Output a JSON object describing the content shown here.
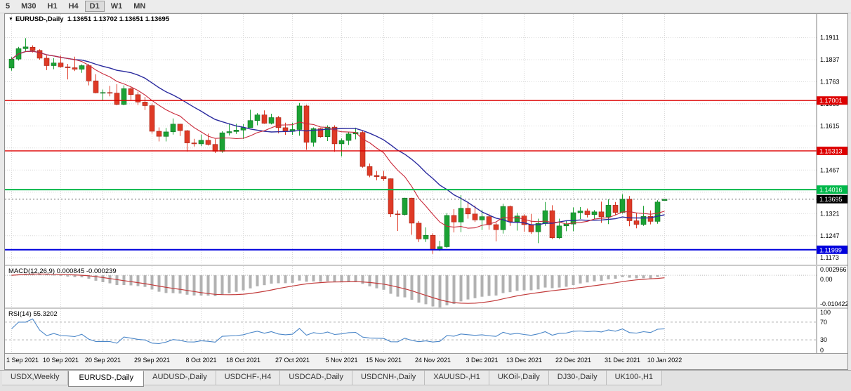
{
  "toolbar": {
    "timeframes": [
      {
        "label": "5",
        "active": false
      },
      {
        "label": "M30",
        "active": false
      },
      {
        "label": "H1",
        "active": false
      },
      {
        "label": "H4",
        "active": false
      },
      {
        "label": "D1",
        "active": true
      },
      {
        "label": "W1",
        "active": false
      },
      {
        "label": "MN",
        "active": false
      }
    ]
  },
  "main_chart": {
    "symbol": "EURUSD-,Daily",
    "ohlc_text": "1.13651 1.13702 1.13651 1.13695"
  },
  "chart_data": {
    "type": "candlestick",
    "title": "EURUSD-,Daily",
    "current": {
      "open": 1.13651,
      "high": 1.13702,
      "low": 1.13651,
      "close": 1.13695
    },
    "y_range": [
      1.115,
      1.199
    ],
    "y_ticks": [
      "1.1911",
      "1.1837",
      "1.1763",
      "1.1689",
      "1.1615",
      "1.1467",
      "1.1321",
      "1.1247",
      "1.1173"
    ],
    "y_grid_hidden": [
      1.1541,
      1.1393
    ],
    "levels": [
      {
        "value": 1.17001,
        "label": "1.17001",
        "color": "#dd0000",
        "width": 1.4
      },
      {
        "value": 1.15313,
        "label": "1.15313",
        "color": "#dd0000",
        "width": 1.4
      },
      {
        "value": 1.14016,
        "label": "1.14016",
        "color": "#00b84a",
        "width": 2
      },
      {
        "value": 1.11999,
        "label": "1.11999",
        "color": "#0000dd",
        "width": 2
      }
    ],
    "current_price_badge": {
      "value": 1.13695,
      "label": "1.13695",
      "color": "#000000"
    },
    "ma_fast_color": "#c9293a",
    "ma_slow_color": "#2a2a9e",
    "x_ticks": [
      {
        "label": "1 Sep 2021",
        "i": 0
      },
      {
        "label": "10 Sep 2021",
        "i": 7
      },
      {
        "label": "20 Sep 2021",
        "i": 13
      },
      {
        "label": "29 Sep 2021",
        "i": 20
      },
      {
        "label": "8 Oct 2021",
        "i": 27
      },
      {
        "label": "18 Oct 2021",
        "i": 33
      },
      {
        "label": "27 Oct 2021",
        "i": 40
      },
      {
        "label": "5 Nov 2021",
        "i": 47
      },
      {
        "label": "15 Nov 2021",
        "i": 53
      },
      {
        "label": "24 Nov 2021",
        "i": 60
      },
      {
        "label": "3 Dec 2021",
        "i": 67
      },
      {
        "label": "13 Dec 2021",
        "i": 73
      },
      {
        "label": "22 Dec 2021",
        "i": 80
      },
      {
        "label": "31 Dec 2021",
        "i": 87
      },
      {
        "label": "10 Jan 2022",
        "i": 93
      }
    ],
    "candles": [
      [
        1.1809,
        1.1846,
        1.18,
        1.1839
      ],
      [
        1.1839,
        1.188,
        1.1834,
        1.1874
      ],
      [
        1.1874,
        1.1909,
        1.1866,
        1.188
      ],
      [
        1.1879,
        1.1885,
        1.1861,
        1.1868
      ],
      [
        1.1868,
        1.1872,
        1.1837,
        1.1842
      ],
      [
        1.1842,
        1.1851,
        1.1802,
        1.1817
      ],
      [
        1.1817,
        1.1842,
        1.1805,
        1.1826
      ],
      [
        1.1826,
        1.1851,
        1.181,
        1.1813
      ],
      [
        1.1813,
        1.1823,
        1.1771,
        1.181
      ],
      [
        1.181,
        1.1847,
        1.1799,
        1.1805
      ],
      [
        1.1805,
        1.1821,
        1.1793,
        1.1817
      ],
      [
        1.1817,
        1.1822,
        1.1751,
        1.1766
      ],
      [
        1.1766,
        1.1788,
        1.1724,
        1.1726
      ],
      [
        1.1726,
        1.1737,
        1.17,
        1.1727
      ],
      [
        1.1727,
        1.1749,
        1.1714,
        1.1725
      ],
      [
        1.1725,
        1.1755,
        1.1684,
        1.1687
      ],
      [
        1.1687,
        1.1751,
        1.1684,
        1.174
      ],
      [
        1.174,
        1.1747,
        1.1701,
        1.172
      ],
      [
        1.172,
        1.173,
        1.1685,
        1.1695
      ],
      [
        1.1695,
        1.1712,
        1.1668,
        1.1683
      ],
      [
        1.1683,
        1.169,
        1.1589,
        1.1597
      ],
      [
        1.1597,
        1.161,
        1.1563,
        1.158
      ],
      [
        1.158,
        1.1608,
        1.1563,
        1.1595
      ],
      [
        1.1595,
        1.164,
        1.1586,
        1.1621
      ],
      [
        1.1621,
        1.1622,
        1.1581,
        1.1599
      ],
      [
        1.1599,
        1.1601,
        1.1529,
        1.1558
      ],
      [
        1.1558,
        1.1572,
        1.1546,
        1.1555
      ],
      [
        1.1555,
        1.1586,
        1.1547,
        1.1567
      ],
      [
        1.1567,
        1.1589,
        1.1549,
        1.1553
      ],
      [
        1.1553,
        1.1571,
        1.1524,
        1.153
      ],
      [
        1.153,
        1.1597,
        1.1525,
        1.1592
      ],
      [
        1.1592,
        1.1624,
        1.1583,
        1.1596
      ],
      [
        1.1596,
        1.1622,
        1.1588,
        1.1601
      ],
      [
        1.1601,
        1.1621,
        1.1571,
        1.1609
      ],
      [
        1.1609,
        1.1669,
        1.1609,
        1.1633
      ],
      [
        1.1633,
        1.1658,
        1.1617,
        1.1652
      ],
      [
        1.1652,
        1.1667,
        1.1622,
        1.1624
      ],
      [
        1.1624,
        1.1656,
        1.162,
        1.1643
      ],
      [
        1.1643,
        1.1648,
        1.159,
        1.1609
      ],
      [
        1.1609,
        1.1626,
        1.1585,
        1.1597
      ],
      [
        1.1597,
        1.1626,
        1.1585,
        1.1603
      ],
      [
        1.1603,
        1.1692,
        1.1582,
        1.1682
      ],
      [
        1.1682,
        1.1686,
        1.1535,
        1.156
      ],
      [
        1.156,
        1.161,
        1.1546,
        1.1606
      ],
      [
        1.1606,
        1.1608,
        1.1576,
        1.1579
      ],
      [
        1.1579,
        1.1617,
        1.1564,
        1.1611
      ],
      [
        1.1611,
        1.1617,
        1.1528,
        1.1555
      ],
      [
        1.1555,
        1.1573,
        1.1513,
        1.1566
      ],
      [
        1.1566,
        1.1596,
        1.1551,
        1.1588
      ],
      [
        1.1588,
        1.1609,
        1.157,
        1.1593
      ],
      [
        1.1593,
        1.1599,
        1.1475,
        1.1479
      ],
      [
        1.1479,
        1.1489,
        1.1443,
        1.1449
      ],
      [
        1.1449,
        1.1464,
        1.1433,
        1.1445
      ],
      [
        1.1445,
        1.1464,
        1.1431,
        1.1438
      ],
      [
        1.1438,
        1.1439,
        1.131,
        1.132
      ],
      [
        1.132,
        1.1332,
        1.1263,
        1.1318
      ],
      [
        1.1318,
        1.1374,
        1.1315,
        1.1373
      ],
      [
        1.1373,
        1.1374,
        1.125,
        1.1289
      ],
      [
        1.1289,
        1.1296,
        1.1226,
        1.1236
      ],
      [
        1.1236,
        1.1275,
        1.1226,
        1.1248
      ],
      [
        1.1248,
        1.1255,
        1.1186,
        1.1199
      ],
      [
        1.1199,
        1.123,
        1.1196,
        1.121
      ],
      [
        1.121,
        1.1323,
        1.1206,
        1.1315
      ],
      [
        1.1315,
        1.1336,
        1.1258,
        1.1293
      ],
      [
        1.1293,
        1.1383,
        1.1259,
        1.1339
      ],
      [
        1.1339,
        1.136,
        1.1304,
        1.132
      ],
      [
        1.132,
        1.1348,
        1.1293,
        1.13
      ],
      [
        1.13,
        1.1334,
        1.1266,
        1.1311
      ],
      [
        1.1311,
        1.132,
        1.1267,
        1.1284
      ],
      [
        1.1284,
        1.1291,
        1.1228,
        1.1267
      ],
      [
        1.1267,
        1.1354,
        1.1254,
        1.1345
      ],
      [
        1.1345,
        1.1348,
        1.128,
        1.1294
      ],
      [
        1.1294,
        1.1324,
        1.1264,
        1.1313
      ],
      [
        1.1313,
        1.1319,
        1.126,
        1.1284
      ],
      [
        1.1284,
        1.132,
        1.1253,
        1.126
      ],
      [
        1.126,
        1.1304,
        1.1222,
        1.1288
      ],
      [
        1.1288,
        1.136,
        1.128,
        1.1331
      ],
      [
        1.1331,
        1.1349,
        1.1236,
        1.124
      ],
      [
        1.124,
        1.1304,
        1.1236,
        1.128
      ],
      [
        1.128,
        1.1296,
        1.1262,
        1.1286
      ],
      [
        1.1286,
        1.1342,
        1.1262,
        1.1324
      ],
      [
        1.1324,
        1.1343,
        1.1303,
        1.133
      ],
      [
        1.133,
        1.1338,
        1.1308,
        1.1318
      ],
      [
        1.1318,
        1.1333,
        1.1304,
        1.1327
      ],
      [
        1.1327,
        1.1361,
        1.129,
        1.131
      ],
      [
        1.131,
        1.1369,
        1.1286,
        1.1349
      ],
      [
        1.1349,
        1.136,
        1.1316,
        1.1325
      ],
      [
        1.1325,
        1.1386,
        1.1321,
        1.137
      ],
      [
        1.137,
        1.138,
        1.1279,
        1.1297
      ],
      [
        1.1297,
        1.1323,
        1.1272,
        1.1285
      ],
      [
        1.1285,
        1.1347,
        1.128,
        1.1312
      ],
      [
        1.1312,
        1.1332,
        1.1285,
        1.1295
      ],
      [
        1.1295,
        1.1366,
        1.1287,
        1.136
      ],
      [
        1.13651,
        1.13702,
        1.13651,
        1.13695
      ]
    ]
  },
  "macd_pane": {
    "label": "MACD(12,26,9) 0.000845 -0.000239",
    "axis_labels": [
      "0.002966",
      "0.00",
      "-0.010422"
    ],
    "scale_max": 0.002966,
    "scale_min": -0.010422
  },
  "rsi_pane": {
    "label": "RSI(14) 55.3202",
    "axis_labels": [
      "100",
      "70",
      "30",
      "0"
    ],
    "levels": [
      70,
      30
    ]
  },
  "tabs": [
    {
      "label": "USDX,Weekly",
      "active": false
    },
    {
      "label": "EURUSD-,Daily",
      "active": true
    },
    {
      "label": "AUDUSD-,Daily",
      "active": false
    },
    {
      "label": "USDCHF-,H4",
      "active": false
    },
    {
      "label": "USDCAD-,Daily",
      "active": false
    },
    {
      "label": "USDCNH-,Daily",
      "active": false
    },
    {
      "label": "XAUUSD-,H1",
      "active": false
    },
    {
      "label": "UKOil-,Daily",
      "active": false
    },
    {
      "label": "DJ30-,Daily",
      "active": false
    },
    {
      "label": "UK100-,H1",
      "active": false
    }
  ]
}
